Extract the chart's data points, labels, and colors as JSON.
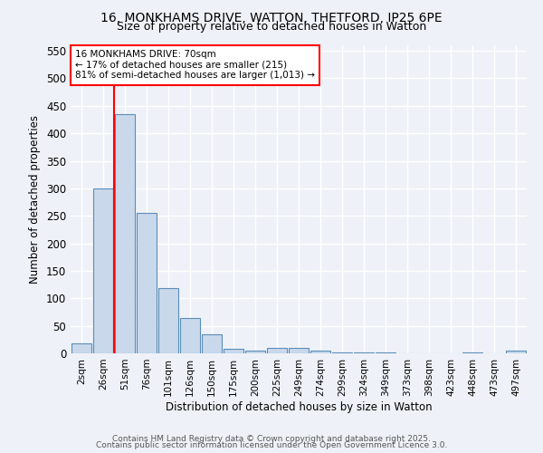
{
  "title_line1": "16, MONKHAMS DRIVE, WATTON, THETFORD, IP25 6PE",
  "title_line2": "Size of property relative to detached houses in Watton",
  "xlabel": "Distribution of detached houses by size in Watton",
  "ylabel": "Number of detached properties",
  "bar_labels": [
    "2sqm",
    "26sqm",
    "51sqm",
    "76sqm",
    "101sqm",
    "126sqm",
    "150sqm",
    "175sqm",
    "200sqm",
    "225sqm",
    "249sqm",
    "274sqm",
    "299sqm",
    "324sqm",
    "349sqm",
    "373sqm",
    "398sqm",
    "423sqm",
    "448sqm",
    "473sqm",
    "497sqm"
  ],
  "bar_values": [
    18,
    300,
    435,
    255,
    118,
    65,
    35,
    8,
    5,
    10,
    10,
    5,
    2,
    2,
    2,
    0,
    0,
    0,
    2,
    0,
    5
  ],
  "bar_color": "#c9d9eb",
  "bar_edge_color": "#5b8db8",
  "vline_x": 1.5,
  "vline_color": "red",
  "annotation_text": "16 MONKHAMS DRIVE: 70sqm\n← 17% of detached houses are smaller (215)\n81% of semi-detached houses are larger (1,013) →",
  "annotation_box_color": "white",
  "annotation_edge_color": "red",
  "ylim": [
    0,
    560
  ],
  "yticks": [
    0,
    50,
    100,
    150,
    200,
    250,
    300,
    350,
    400,
    450,
    500,
    550
  ],
  "bg_color": "#eef2f8",
  "grid_color": "white",
  "footer_line1": "Contains HM Land Registry data © Crown copyright and database right 2025.",
  "footer_line2": "Contains public sector information licensed under the Open Government Licence 3.0."
}
